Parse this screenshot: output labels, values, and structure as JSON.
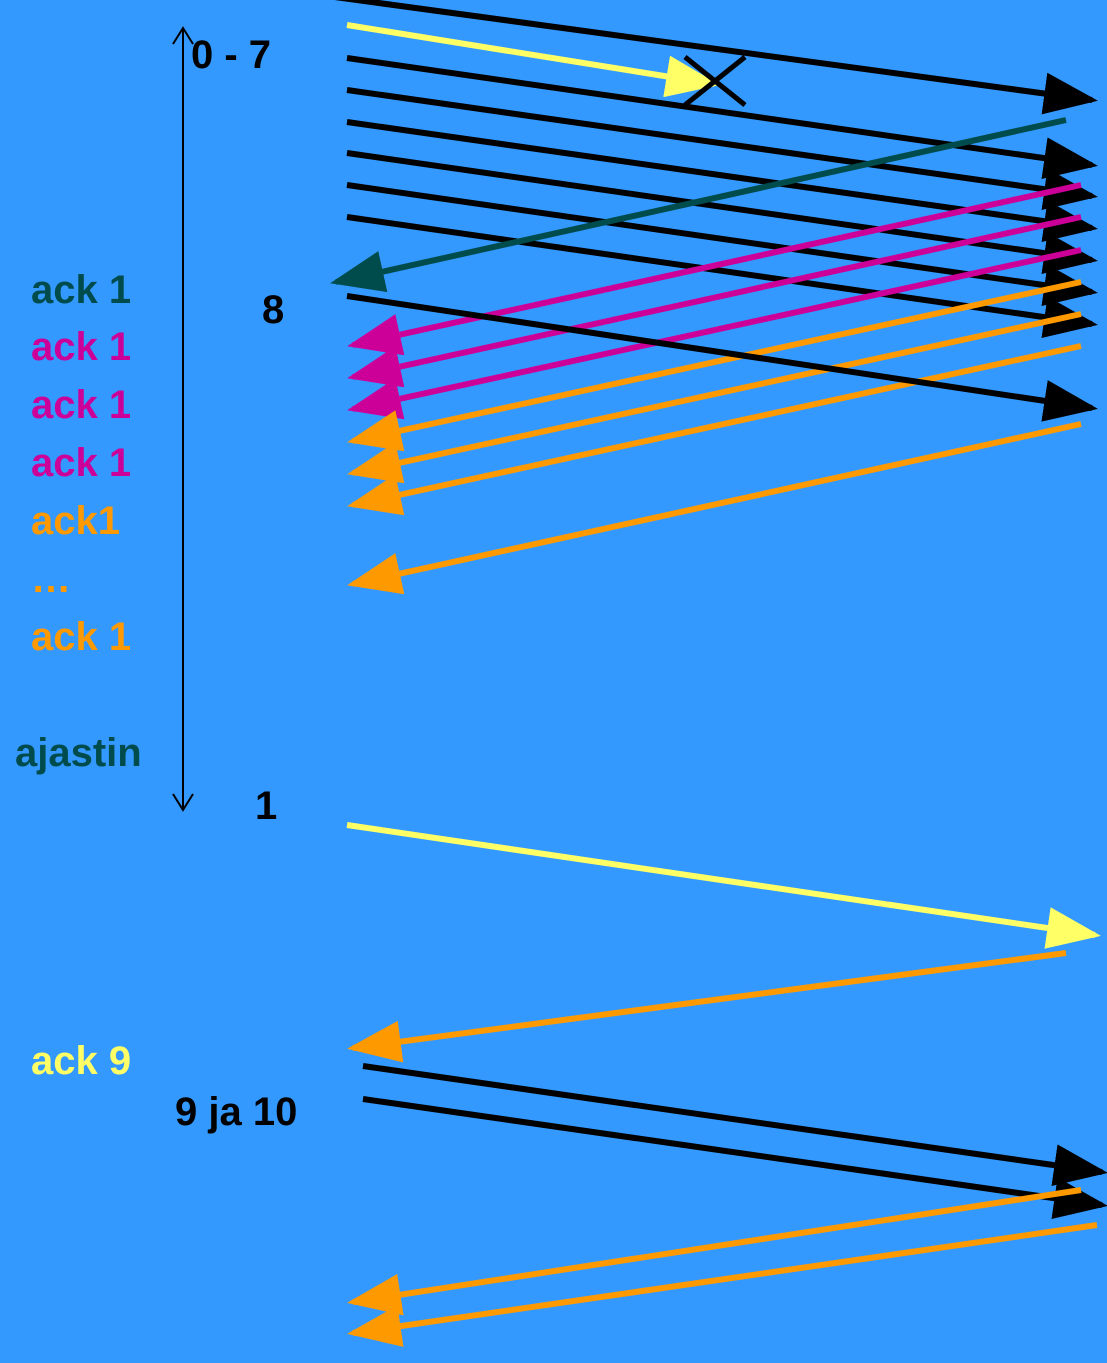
{
  "colors": {
    "background": "#3399ff",
    "black": "#000000",
    "yellow": "#ffff66",
    "dark_teal": "#004c4c",
    "magenta": "#cc0099",
    "orange": "#ff9900"
  },
  "labels": {
    "segments_0_7": "0 - 7",
    "segment_8": "8",
    "segment_1": "1",
    "segments_9_10": "9 ja 10",
    "timer": "ajastin",
    "ack_list": [
      "ack 1",
      "ack 1",
      "ack 1",
      "ack 1",
      "ack1",
      "…",
      "ack 1"
    ],
    "ack_9": "ack 9"
  },
  "icons": {
    "lost_packet": "x-mark-icon",
    "timer_span": "double-arrow-icon"
  }
}
